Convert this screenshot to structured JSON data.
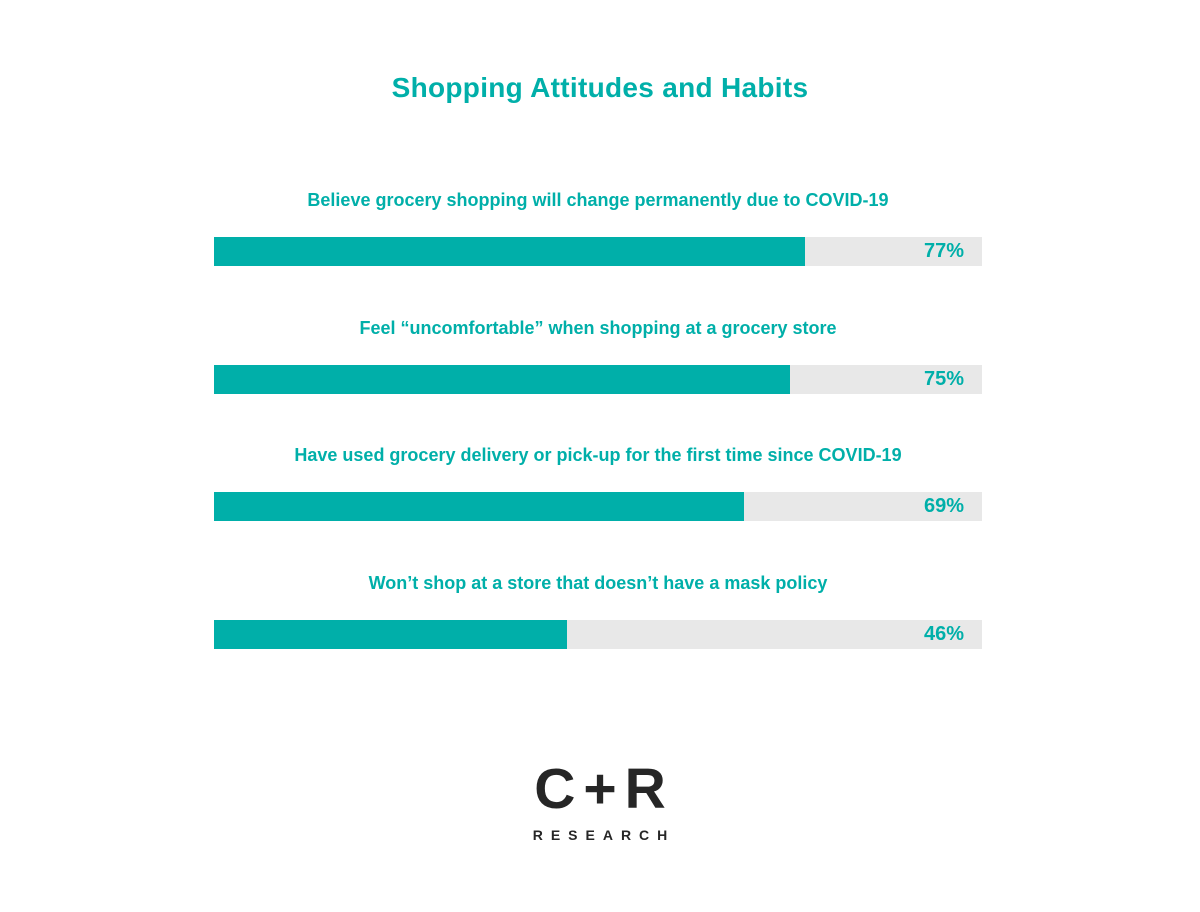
{
  "title": "Shopping Attitudes and Habits",
  "colors": {
    "accent": "#00AFA9",
    "track": "#E8E8E8",
    "logo": "#262626",
    "background": "#FFFFFF"
  },
  "chart_data": {
    "type": "bar",
    "orientation": "horizontal",
    "title": "Shopping Attitudes and Habits",
    "xlim": [
      0,
      100
    ],
    "grid": false,
    "legend": false,
    "categories": [
      "Believe grocery shopping will change permanently due to COVID-19",
      "Feel “uncomfortable” when shopping at a grocery store",
      "Have used grocery delivery or pick-up for the first time since COVID-19",
      "Won’t shop at a store that doesn’t have a mask policy"
    ],
    "values": [
      77,
      75,
      69,
      46
    ],
    "value_labels": [
      "77%",
      "75%",
      "69%",
      "46%"
    ]
  },
  "logo": {
    "main": "C+R",
    "sub": "RESEARCH"
  }
}
